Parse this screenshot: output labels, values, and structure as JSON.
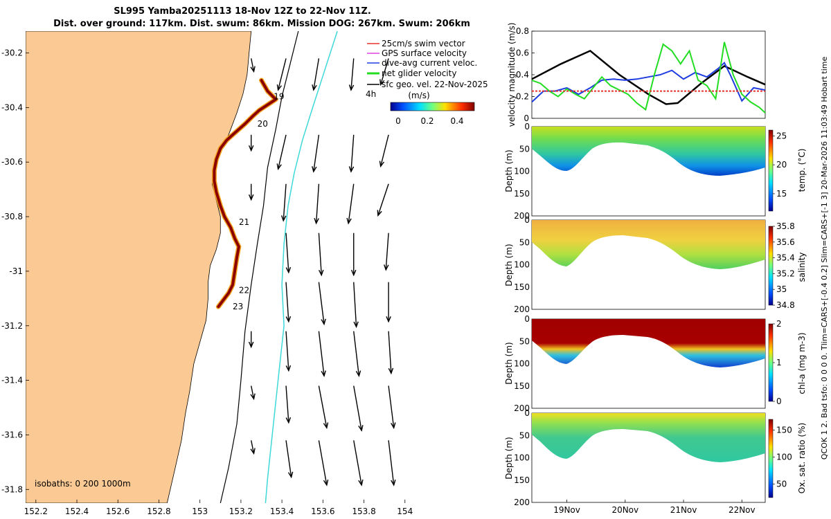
{
  "header": {
    "title_line1": "SL995 Yamba20251113 18-Nov 12Z to 22-Nov 11Z.",
    "title_line2": "Dist. over ground: 117km. Dist. swum: 86km. Mission DOG: 267km. Swum: 206km"
  },
  "side_label": "QCOK 1  2. Bad tsfo: 0  0  0  0. Tlim=CARS+[-0.4 0.2] Slim=CARS+[-1 3] 20-Mar-2026 11:03:49 Hobart time",
  "colors": {
    "land": "#fbc993",
    "track": "#8b0000",
    "track_edge": "#f5a623",
    "black_line": "#000000",
    "cyan_line": "#3dd8d8",
    "swim": "#e8312a",
    "gps": "#e040e0",
    "dive": "#1f3ce0",
    "net": "#22dd22"
  },
  "chart_data": [
    {
      "type": "map",
      "title": "SL995 Yamba20251113 18-Nov 12Z to 22-Nov 11Z.",
      "xlim": [
        152.15,
        154.45
      ],
      "ylim": [
        -31.85,
        -30.12
      ],
      "x_ticks": [
        "152.2",
        "152.4",
        "152.6",
        "152.8",
        "153",
        "153.2",
        "153.4",
        "153.6",
        "153.8",
        "154"
      ],
      "x_tick_values": [
        152.2,
        152.4,
        152.6,
        152.8,
        153.0,
        153.2,
        153.4,
        153.6,
        153.8,
        154.0
      ],
      "y_ticks": [
        "-30.2",
        "-30.4",
        "-30.6",
        "-30.8",
        "-31",
        "-31.2",
        "-31.4",
        "-31.6",
        "-31.8"
      ],
      "y_tick_values": [
        -30.2,
        -30.4,
        -30.6,
        -30.8,
        -31.0,
        -31.2,
        -31.4,
        -31.6,
        -31.8
      ],
      "legend": [
        {
          "label": "25cm/s swim vector",
          "color": "#e8312a"
        },
        {
          "label": "GPS surface velocity",
          "color": "#e040e0"
        },
        {
          "label": "dive-avg current veloc.",
          "color": "#1f3ce0"
        },
        {
          "label": "net glider velocity",
          "color": "#22dd22"
        },
        {
          "label": "sfc geo. vel. 22-Nov-2025",
          "color": "#000000"
        }
      ],
      "arrow_scale_label": "4h",
      "colorbar_label": "(m/s)",
      "colorbar_ticks": [
        "0",
        "0.2",
        "0.4"
      ],
      "isobaths_label": "isobaths: 0   200   1000m",
      "day_labels": [
        {
          "text": "19",
          "lon": 153.36,
          "lat": -30.37
        },
        {
          "text": "20",
          "lon": 153.28,
          "lat": -30.47
        },
        {
          "text": "21",
          "lon": 153.19,
          "lat": -30.83
        },
        {
          "text": "22",
          "lon": 153.19,
          "lat": -31.08
        },
        {
          "text": "23",
          "lon": 153.16,
          "lat": -31.14
        }
      ],
      "track": [
        [
          153.3,
          -30.3
        ],
        [
          153.33,
          -30.34
        ],
        [
          153.37,
          -30.37
        ],
        [
          153.33,
          -30.39
        ],
        [
          153.29,
          -30.41
        ],
        [
          153.26,
          -30.43
        ],
        [
          153.22,
          -30.46
        ],
        [
          153.19,
          -30.48
        ],
        [
          153.16,
          -30.5
        ],
        [
          153.13,
          -30.52
        ],
        [
          153.1,
          -30.55
        ],
        [
          153.08,
          -30.59
        ],
        [
          153.07,
          -30.63
        ],
        [
          153.07,
          -30.67
        ],
        [
          153.08,
          -30.71
        ],
        [
          153.1,
          -30.76
        ],
        [
          153.12,
          -30.8
        ],
        [
          153.15,
          -30.84
        ],
        [
          153.17,
          -30.88
        ],
        [
          153.19,
          -30.91
        ],
        [
          153.18,
          -30.95
        ],
        [
          153.17,
          -31.0
        ],
        [
          153.16,
          -31.05
        ],
        [
          153.14,
          -31.08
        ],
        [
          153.11,
          -31.11
        ],
        [
          153.09,
          -31.13
        ]
      ],
      "coast": [
        [
          153.25,
          -30.12
        ],
        [
          153.24,
          -30.2
        ],
        [
          153.23,
          -30.28
        ],
        [
          153.21,
          -30.35
        ],
        [
          153.18,
          -30.42
        ],
        [
          153.14,
          -30.5
        ],
        [
          153.1,
          -30.56
        ],
        [
          153.07,
          -30.62
        ],
        [
          153.06,
          -30.68
        ],
        [
          153.08,
          -30.74
        ],
        [
          153.1,
          -30.8
        ],
        [
          153.1,
          -30.86
        ],
        [
          153.08,
          -30.92
        ],
        [
          153.05,
          -30.98
        ],
        [
          153.04,
          -31.04
        ],
        [
          153.04,
          -31.1
        ],
        [
          153.03,
          -31.18
        ],
        [
          153.0,
          -31.26
        ],
        [
          152.97,
          -31.34
        ],
        [
          152.95,
          -31.44
        ],
        [
          152.93,
          -31.52
        ],
        [
          152.91,
          -31.62
        ],
        [
          152.88,
          -31.72
        ],
        [
          152.84,
          -31.85
        ]
      ],
      "isobath_200": [
        [
          153.48,
          -30.12
        ],
        [
          153.44,
          -30.24
        ],
        [
          153.4,
          -30.36
        ],
        [
          153.37,
          -30.48
        ],
        [
          153.33,
          -30.62
        ],
        [
          153.31,
          -30.76
        ],
        [
          153.28,
          -30.9
        ],
        [
          153.25,
          -31.05
        ],
        [
          153.22,
          -31.22
        ],
        [
          153.2,
          -31.4
        ],
        [
          153.18,
          -31.56
        ],
        [
          153.14,
          -31.72
        ],
        [
          153.1,
          -31.85
        ]
      ],
      "isobath_1000": [
        [
          153.67,
          -30.12
        ],
        [
          153.61,
          -30.26
        ],
        [
          153.55,
          -30.4
        ],
        [
          153.5,
          -30.52
        ],
        [
          153.46,
          -30.64
        ],
        [
          153.43,
          -30.76
        ],
        [
          153.41,
          -30.9
        ],
        [
          153.4,
          -31.05
        ],
        [
          153.41,
          -31.2
        ],
        [
          153.39,
          -31.34
        ],
        [
          153.37,
          -31.48
        ],
        [
          153.35,
          -31.62
        ],
        [
          153.33,
          -31.76
        ],
        [
          153.32,
          -31.85
        ]
      ],
      "vector_field": [
        {
          "lon": 153.25,
          "lat": -30.22,
          "u": 0.01,
          "v": -0.05
        },
        {
          "lon": 153.42,
          "lat": -30.22,
          "u": -0.03,
          "v": -0.12
        },
        {
          "lon": 153.25,
          "lat": -30.5,
          "u": 0.0,
          "v": -0.06
        },
        {
          "lon": 153.42,
          "lat": -30.5,
          "u": -0.03,
          "v": -0.13
        },
        {
          "lon": 153.58,
          "lat": -30.5,
          "u": -0.02,
          "v": -0.14
        },
        {
          "lon": 153.75,
          "lat": -30.5,
          "u": -0.01,
          "v": -0.14
        },
        {
          "lon": 153.92,
          "lat": -30.5,
          "u": -0.03,
          "v": -0.12
        },
        {
          "lon": 153.25,
          "lat": -30.68,
          "u": 0.0,
          "v": -0.06
        },
        {
          "lon": 153.42,
          "lat": -30.68,
          "u": -0.01,
          "v": -0.14
        },
        {
          "lon": 153.58,
          "lat": -30.68,
          "u": -0.01,
          "v": -0.15
        },
        {
          "lon": 153.75,
          "lat": -30.68,
          "u": -0.02,
          "v": -0.15
        },
        {
          "lon": 153.92,
          "lat": -30.68,
          "u": -0.04,
          "v": -0.12
        },
        {
          "lon": 153.42,
          "lat": -30.86,
          "u": 0.01,
          "v": -0.15
        },
        {
          "lon": 153.58,
          "lat": -30.86,
          "u": 0.01,
          "v": -0.16
        },
        {
          "lon": 153.75,
          "lat": -30.86,
          "u": 0.0,
          "v": -0.16
        },
        {
          "lon": 153.92,
          "lat": -30.86,
          "u": -0.01,
          "v": -0.14
        },
        {
          "lon": 153.42,
          "lat": -31.04,
          "u": 0.01,
          "v": -0.15
        },
        {
          "lon": 153.58,
          "lat": -31.04,
          "u": 0.02,
          "v": -0.16
        },
        {
          "lon": 153.75,
          "lat": -31.04,
          "u": 0.01,
          "v": -0.17
        },
        {
          "lon": 153.92,
          "lat": -31.04,
          "u": 0.0,
          "v": -0.15
        },
        {
          "lon": 153.25,
          "lat": -31.22,
          "u": 0.0,
          "v": -0.06
        },
        {
          "lon": 153.42,
          "lat": -31.22,
          "u": 0.01,
          "v": -0.15
        },
        {
          "lon": 153.58,
          "lat": -31.22,
          "u": 0.02,
          "v": -0.17
        },
        {
          "lon": 153.75,
          "lat": -31.22,
          "u": 0.02,
          "v": -0.17
        },
        {
          "lon": 153.92,
          "lat": -31.22,
          "u": 0.01,
          "v": -0.16
        },
        {
          "lon": 153.25,
          "lat": -31.42,
          "u": 0.01,
          "v": -0.05
        },
        {
          "lon": 153.42,
          "lat": -31.42,
          "u": 0.01,
          "v": -0.14
        },
        {
          "lon": 153.58,
          "lat": -31.42,
          "u": 0.03,
          "v": -0.16
        },
        {
          "lon": 153.75,
          "lat": -31.42,
          "u": 0.03,
          "v": -0.17
        },
        {
          "lon": 153.92,
          "lat": -31.42,
          "u": 0.02,
          "v": -0.16
        },
        {
          "lon": 153.25,
          "lat": -31.62,
          "u": 0.01,
          "v": -0.05
        },
        {
          "lon": 153.42,
          "lat": -31.62,
          "u": 0.02,
          "v": -0.14
        },
        {
          "lon": 153.58,
          "lat": -31.62,
          "u": 0.03,
          "v": -0.17
        },
        {
          "lon": 153.75,
          "lat": -31.62,
          "u": 0.03,
          "v": -0.17
        },
        {
          "lon": 153.92,
          "lat": -31.62,
          "u": 0.02,
          "v": -0.17
        },
        {
          "lon": 153.58,
          "lat": -30.22,
          "u": -0.02,
          "v": -0.12
        },
        {
          "lon": 153.75,
          "lat": -30.22,
          "u": -0.01,
          "v": -0.12
        },
        {
          "lon": 153.92,
          "lat": -30.22,
          "u": -0.03,
          "v": -0.1
        }
      ]
    },
    {
      "type": "line",
      "ylabel": "velocity magnitude (m/s)",
      "ylim": [
        0,
        0.8
      ],
      "y_ticks": [
        "0",
        "0.2",
        "0.4",
        "0.6",
        "0.8"
      ],
      "y_tick_values": [
        0,
        0.2,
        0.4,
        0.6,
        0.8
      ],
      "xlim": [
        0,
        4
      ],
      "series": [
        {
          "name": "sfc geo. vel.",
          "color": "#000000",
          "x": [
            0,
            0.5,
            1.0,
            1.5,
            2.0,
            2.3,
            2.5,
            2.9,
            3.3,
            3.7,
            4.0
          ],
          "values": [
            0.36,
            0.5,
            0.62,
            0.4,
            0.22,
            0.13,
            0.14,
            0.32,
            0.48,
            0.38,
            0.31
          ]
        },
        {
          "name": "dive-avg current veloc.",
          "color": "#1f3ce0",
          "x": [
            0,
            0.2,
            0.4,
            0.6,
            0.8,
            1.0,
            1.2,
            1.4,
            1.6,
            1.8,
            2.0,
            2.2,
            2.4,
            2.6,
            2.8,
            3.0,
            3.2,
            3.3,
            3.4,
            3.6,
            3.8,
            4.0
          ],
          "values": [
            0.15,
            0.25,
            0.25,
            0.28,
            0.22,
            0.28,
            0.35,
            0.36,
            0.35,
            0.36,
            0.38,
            0.4,
            0.44,
            0.36,
            0.42,
            0.38,
            0.46,
            0.51,
            0.4,
            0.16,
            0.28,
            0.26
          ]
        },
        {
          "name": "net glider velocity",
          "color": "#22dd22",
          "x": [
            0,
            0.15,
            0.3,
            0.45,
            0.6,
            0.75,
            0.9,
            1.05,
            1.2,
            1.35,
            1.5,
            1.65,
            1.8,
            1.95,
            2.1,
            2.25,
            2.4,
            2.55,
            2.7,
            2.85,
            3.0,
            3.15,
            3.3,
            3.45,
            3.6,
            3.75,
            3.9,
            4.0
          ],
          "values": [
            0.35,
            0.32,
            0.25,
            0.2,
            0.27,
            0.22,
            0.18,
            0.28,
            0.38,
            0.3,
            0.26,
            0.22,
            0.14,
            0.08,
            0.4,
            0.68,
            0.62,
            0.5,
            0.62,
            0.35,
            0.3,
            0.18,
            0.7,
            0.4,
            0.22,
            0.15,
            0.1,
            0.05
          ]
        },
        {
          "name": "25cm/s swim vector",
          "color": "#e8312a",
          "x": [
            0,
            4
          ],
          "values": [
            0.25,
            0.25
          ]
        }
      ]
    },
    {
      "type": "heatmap",
      "ylabel": "Depth (m)",
      "colorbar_label": "temp. (°C)",
      "ylim": [
        0,
        200
      ],
      "y_ticks": [
        "0",
        "50",
        "100",
        "150",
        "200"
      ],
      "y_tick_values": [
        0,
        50,
        100,
        150,
        200
      ],
      "colorbar_ticks": [
        "15",
        "20",
        "25"
      ],
      "colorbar_tick_values": [
        15,
        20,
        25
      ],
      "clim": [
        12,
        26
      ]
    },
    {
      "type": "heatmap",
      "ylabel": "Depth (m)",
      "colorbar_label": "salinity",
      "ylim": [
        0,
        200
      ],
      "y_ticks": [
        "0",
        "50",
        "100",
        "150",
        "200"
      ],
      "y_tick_values": [
        0,
        50,
        100,
        150,
        200
      ],
      "colorbar_ticks": [
        "34.8",
        "35",
        "35.2",
        "35.4",
        "35.6",
        "35.8"
      ],
      "colorbar_tick_values": [
        34.8,
        35.0,
        35.2,
        35.4,
        35.6,
        35.8
      ],
      "clim": [
        34.8,
        35.8
      ]
    },
    {
      "type": "heatmap",
      "ylabel": "Depth (m)",
      "colorbar_label": "chl-a (mg m-3)",
      "ylim": [
        0,
        200
      ],
      "y_ticks": [
        "0",
        "50",
        "100",
        "150",
        "200"
      ],
      "y_tick_values": [
        0,
        50,
        100,
        150,
        200
      ],
      "colorbar_ticks": [
        "0",
        "1",
        "2"
      ],
      "colorbar_tick_values": [
        0,
        1,
        2
      ],
      "clim": [
        0,
        2
      ]
    },
    {
      "type": "heatmap",
      "ylabel": "Depth (m)",
      "colorbar_label": "Ox. sat. ratio (%)",
      "ylim": [
        0,
        200
      ],
      "y_ticks": [
        "0",
        "50",
        "100",
        "150",
        "200"
      ],
      "y_tick_values": [
        0,
        50,
        100,
        150,
        200
      ],
      "colorbar_ticks": [
        "50",
        "100",
        "150"
      ],
      "colorbar_tick_values": [
        50,
        100,
        150
      ],
      "clim": [
        25,
        170
      ],
      "x_ticks": [
        "19Nov",
        "20Nov",
        "21Nov",
        "22Nov"
      ],
      "x_tick_values": [
        0.6,
        1.6,
        2.6,
        3.6
      ]
    }
  ]
}
